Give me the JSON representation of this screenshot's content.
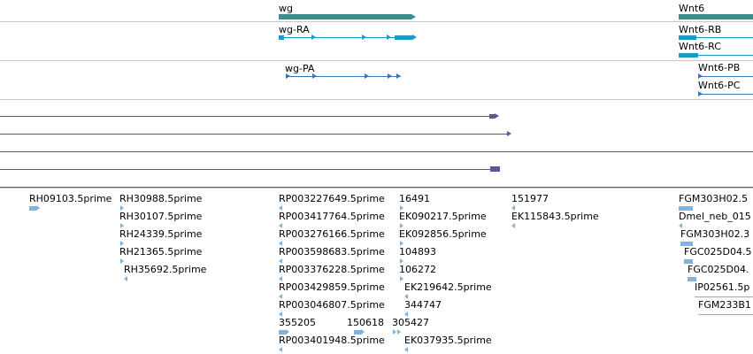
{
  "colors": {
    "gene": "#3c8c8a",
    "transcript": "#1a9bc4",
    "transcript_dark": "#3b73b8",
    "alignment": "#6a4fa0",
    "est": "#7fb2dc",
    "divider": "#c9c9c9"
  },
  "genes": [
    {
      "label": "wg"
    },
    {
      "label": "Wnt6"
    }
  ],
  "transcripts": [
    {
      "label": "wg-RA"
    },
    {
      "label": "wg-PA"
    },
    {
      "label": "Wnt6-RB"
    },
    {
      "label": "Wnt6-RC"
    },
    {
      "label": "Wnt6-PB"
    },
    {
      "label": "Wnt6-PC"
    }
  ],
  "est_labels": [
    "RH09103.5prime",
    "RH30988.5prime",
    "RH30107.5prime",
    "RH24339.5prime",
    "RH21365.5prime",
    "RH35692.5prime",
    "RP003227649.5prime",
    "RP003417764.5prime",
    "RP003276166.5prime",
    "RP003598683.5prime",
    "RP003376228.5prime",
    "RP003429859.5prime",
    "RP003046807.5prime",
    "355205",
    "150618",
    "305427",
    "RP003401948.5prime",
    "16491",
    "EK090217.5prime",
    "EK092856.5prime",
    "104893",
    "106272",
    "EK219642.5prime",
    "344747",
    "EK037935.5prime",
    "151977",
    "EK115843.5prime",
    "FGM303H02.5",
    "Dmel_neb_015",
    "FGM303H02.3",
    "FGC025D04.5",
    "FGC025D04.",
    "IP02561.5p",
    "FGM233B1"
  ]
}
